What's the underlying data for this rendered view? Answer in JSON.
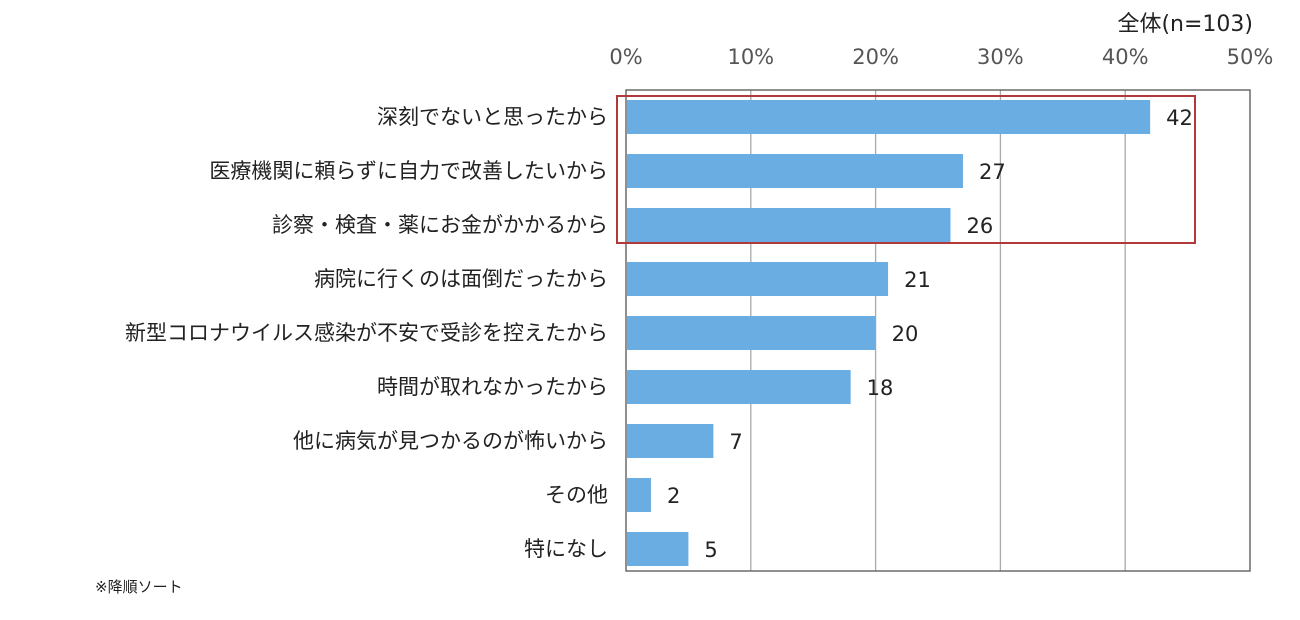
{
  "chart_data": {
    "type": "bar",
    "orientation": "horizontal",
    "header": "全体(n=103)",
    "footnote": "※降順ソート",
    "categories": [
      "深刻でないと思ったから",
      "医療機関に頼らずに自力で改善したいから",
      "診察・検査・薬にお金がかかるから",
      "病院に行くのは面倒だったから",
      "新型コロナウイルス感染が不安で受診を控えたから",
      "時間が取れなかったから",
      "他に病気が見つかるのが怖いから",
      "その他",
      "特になし"
    ],
    "values": [
      42,
      27,
      26,
      21,
      20,
      18,
      7,
      2,
      5
    ],
    "value_unit": "%",
    "xlim": [
      0,
      50
    ],
    "xticks": [
      "0%",
      "10%",
      "20%",
      "30%",
      "40%",
      "50%"
    ],
    "tick_position": "top",
    "grid": true,
    "highlight": {
      "categories": [
        0,
        1,
        2
      ],
      "color": "#b03a3a"
    },
    "bar_color": "#69ade3"
  }
}
